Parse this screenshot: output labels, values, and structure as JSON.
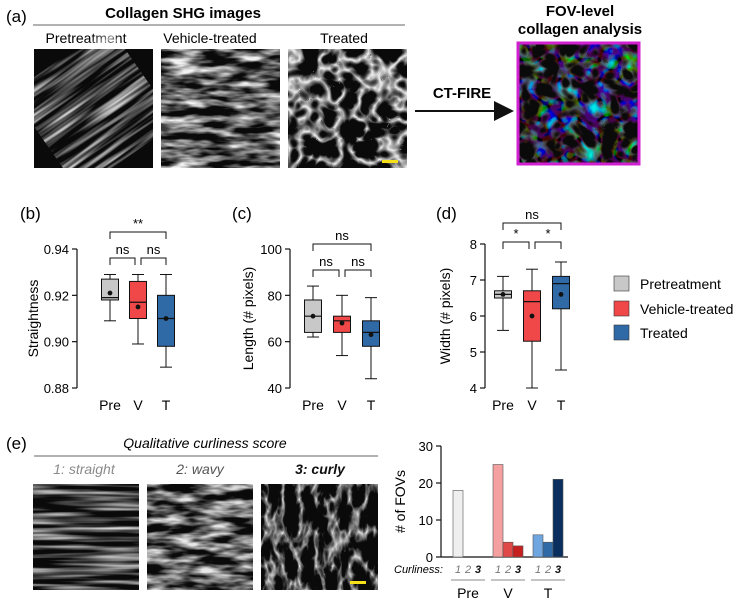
{
  "panels": {
    "a": {
      "label": "(a)",
      "header": "Collagen SHG images",
      "images": [
        "Pretreatment",
        "Vehicle-treated",
        "Treated"
      ],
      "method": "CT-FIRE",
      "analysis_title_line1": "FOV-level",
      "analysis_title_line2": "collagen analysis"
    },
    "b": {
      "label": "(b)"
    },
    "c": {
      "label": "(c)"
    },
    "d": {
      "label": "(d)"
    },
    "e": {
      "label": "(e)",
      "header": "Qualitative curliness score",
      "scores": [
        "1: straight",
        "2: wavy",
        "3: curly"
      ],
      "curliness_label": "Curliness:",
      "curliness_levels": [
        "1",
        "2",
        "3"
      ]
    }
  },
  "legend": {
    "items": [
      {
        "name": "Pretreatment",
        "color": "#c8c8c8"
      },
      {
        "name": "Vehicle-treated",
        "color": "#f04848"
      },
      {
        "name": "Treated",
        "color": "#2f6aa6"
      }
    ]
  },
  "chart_data": [
    {
      "type": "box",
      "panel": "b",
      "ylabel": "Straightness",
      "ylim": [
        0.88,
        0.94
      ],
      "yticks": [
        "0.88",
        "0.90",
        "0.92",
        "0.94"
      ],
      "categories": [
        "Pre",
        "V",
        "T"
      ],
      "boxes": [
        {
          "min": 0.909,
          "q1": 0.918,
          "median": 0.919,
          "q3": 0.927,
          "max": 0.929,
          "mean": 0.921
        },
        {
          "min": 0.899,
          "q1": 0.91,
          "median": 0.917,
          "q3": 0.926,
          "max": 0.929,
          "mean": 0.915
        },
        {
          "min": 0.889,
          "q1": 0.898,
          "median": 0.91,
          "q3": 0.92,
          "max": 0.929,
          "mean": 0.91
        }
      ],
      "comparisons": [
        {
          "a": 0,
          "b": 2,
          "label": "**"
        },
        {
          "a": 0,
          "b": 1,
          "label": "ns"
        },
        {
          "a": 1,
          "b": 2,
          "label": "ns"
        }
      ]
    },
    {
      "type": "box",
      "panel": "c",
      "ylabel": "Length (# pixels)",
      "ylim": [
        40,
        100
      ],
      "yticks": [
        "40",
        "60",
        "80",
        "100"
      ],
      "categories": [
        "Pre",
        "V",
        "T"
      ],
      "boxes": [
        {
          "min": 62,
          "q1": 64,
          "median": 71,
          "q3": 78,
          "max": 84,
          "mean": 71
        },
        {
          "min": 54,
          "q1": 64,
          "median": 69,
          "q3": 71,
          "max": 80,
          "mean": 68
        },
        {
          "min": 44,
          "q1": 58,
          "median": 64,
          "q3": 69,
          "max": 79,
          "mean": 63
        }
      ],
      "comparisons": [
        {
          "a": 0,
          "b": 2,
          "label": "ns"
        },
        {
          "a": 0,
          "b": 1,
          "label": "ns"
        },
        {
          "a": 1,
          "b": 2,
          "label": "ns"
        }
      ]
    },
    {
      "type": "box",
      "panel": "d",
      "ylabel": "Width (# pixels)",
      "ylim": [
        4,
        8
      ],
      "yticks": [
        "4",
        "5",
        "6",
        "7",
        "8"
      ],
      "categories": [
        "Pre",
        "V",
        "T"
      ],
      "boxes": [
        {
          "min": 5.6,
          "q1": 6.5,
          "median": 6.6,
          "q3": 6.7,
          "max": 7.1,
          "mean": 6.6
        },
        {
          "min": 4.0,
          "q1": 5.3,
          "median": 6.4,
          "q3": 6.7,
          "max": 7.3,
          "mean": 6.0
        },
        {
          "min": 4.5,
          "q1": 6.2,
          "median": 6.9,
          "q3": 7.1,
          "max": 7.5,
          "mean": 6.6
        }
      ],
      "comparisons": [
        {
          "a": 0,
          "b": 2,
          "label": "ns"
        },
        {
          "a": 0,
          "b": 1,
          "label": "*"
        },
        {
          "a": 1,
          "b": 2,
          "label": "*"
        }
      ]
    },
    {
      "type": "bar",
      "panel": "e",
      "ylabel": "# of FOVs",
      "ylim": [
        0,
        30
      ],
      "yticks": [
        "0",
        "10",
        "20",
        "30"
      ],
      "groups": [
        "Pre",
        "V",
        "T"
      ],
      "series": [
        {
          "name": "1",
          "values": [
            18,
            25,
            6
          ]
        },
        {
          "name": "2",
          "values": [
            0,
            4,
            4
          ]
        },
        {
          "name": "3",
          "values": [
            0,
            3,
            21
          ]
        }
      ],
      "colors": [
        [
          "#efefef",
          "#efefef",
          "#efefef"
        ],
        [
          "#f4a0a0",
          "#e04848",
          "#c51f1f"
        ],
        [
          "#6fa6e0",
          "#2f6aa6",
          "#0a2f5e"
        ]
      ]
    }
  ]
}
